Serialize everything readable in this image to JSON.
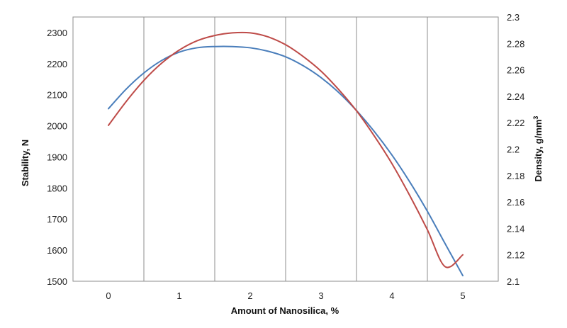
{
  "chart_data": {
    "type": "line",
    "xlabel": "Amount of Nanosilica, %",
    "ylabel_left": "Stability, N",
    "ylabel_right": "Density, g/mm",
    "ylabel_right_superscript": "3",
    "x_ticks": [
      "0",
      "1",
      "2",
      "3",
      "4",
      "5"
    ],
    "y_left_ticks": [
      "1500",
      "1600",
      "1700",
      "1800",
      "1900",
      "2000",
      "2100",
      "2200",
      "2300"
    ],
    "y_right_ticks": [
      "2.1",
      "2.12",
      "2.14",
      "2.16",
      "2.18",
      "2.2",
      "2.22",
      "2.24",
      "2.26",
      "2.28",
      "2.3"
    ],
    "ylim_left": [
      1500,
      2350
    ],
    "ylim_right": [
      2.1,
      2.3
    ],
    "grid": "vertical",
    "series": [
      {
        "axis": "left",
        "color": "#4a7ebb",
        "x": [
          0,
          0.25,
          0.5,
          0.75,
          1,
          1.25,
          1.5,
          1.75,
          2,
          2.25,
          2.5,
          2.75,
          3,
          3.25,
          3.5,
          3.75,
          4,
          4.25,
          4.5,
          4.75,
          5
        ],
        "values": [
          2055,
          2118,
          2170,
          2210,
          2237,
          2251,
          2255,
          2255,
          2251,
          2240,
          2222,
          2193,
          2155,
          2107,
          2049,
          1982,
          1906,
          1820,
          1725,
          1621,
          1518
        ]
      },
      {
        "axis": "right",
        "color": "#be4b48",
        "x": [
          0,
          0.25,
          0.5,
          0.75,
          1,
          1.25,
          1.5,
          1.75,
          2,
          2.25,
          2.5,
          2.75,
          3,
          3.25,
          3.5,
          3.75,
          4,
          4.25,
          4.5,
          4.75,
          5
        ],
        "values": [
          2.218,
          2.236,
          2.252,
          2.265,
          2.275,
          2.282,
          2.286,
          2.288,
          2.288,
          2.285,
          2.279,
          2.27,
          2.259,
          2.245,
          2.229,
          2.21,
          2.189,
          2.165,
          2.139,
          2.111,
          2.12
        ]
      }
    ]
  }
}
